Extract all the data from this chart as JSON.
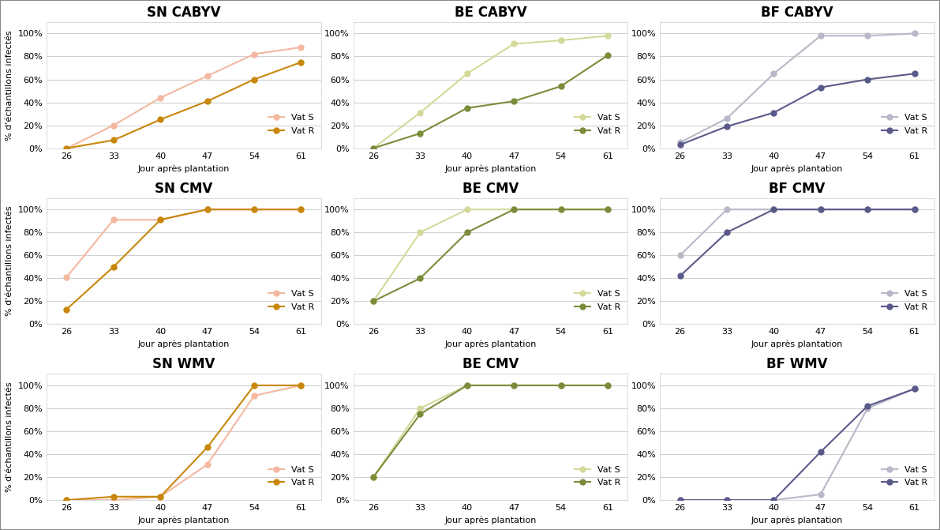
{
  "x": [
    26,
    33,
    40,
    47,
    54,
    61
  ],
  "plots": [
    {
      "title": "SN CABYV",
      "vat_s": [
        0,
        0.2,
        0.44,
        0.63,
        0.82,
        0.88
      ],
      "vat_r": [
        0,
        0.07,
        0.25,
        0.41,
        0.6,
        0.75
      ],
      "color_s": "#f4b8a0",
      "color_r": "#c8860a"
    },
    {
      "title": "BE CABYV",
      "vat_s": [
        0,
        0.31,
        0.65,
        0.91,
        0.94,
        0.98
      ],
      "vat_r": [
        0,
        0.13,
        0.35,
        0.41,
        0.54,
        0.81
      ],
      "color_s": "#d4d99a",
      "color_r": "#7a8c3a"
    },
    {
      "title": "BF CABYV",
      "vat_s": [
        0.05,
        0.26,
        0.65,
        0.98,
        0.98,
        1.0
      ],
      "vat_r": [
        0.03,
        0.19,
        0.31,
        0.53,
        0.6,
        0.65
      ],
      "color_s": "#b8b8c8",
      "color_r": "#5a5a8a"
    },
    {
      "title": "SN CMV",
      "vat_s": [
        0.41,
        0.91,
        0.91,
        1.0,
        1.0,
        1.0
      ],
      "vat_r": [
        0.13,
        0.5,
        0.91,
        1.0,
        1.0,
        1.0
      ],
      "color_s": "#f4b8a0",
      "color_r": "#c8860a"
    },
    {
      "title": "BE CMV",
      "vat_s": [
        0.2,
        0.8,
        1.0,
        1.0,
        1.0,
        1.0
      ],
      "vat_r": [
        0.2,
        0.4,
        0.8,
        1.0,
        1.0,
        1.0
      ],
      "color_s": "#d4d99a",
      "color_r": "#7a8c3a"
    },
    {
      "title": "BF CMV",
      "vat_s": [
        0.6,
        1.0,
        1.0,
        1.0,
        1.0,
        1.0
      ],
      "vat_r": [
        0.42,
        0.8,
        1.0,
        1.0,
        1.0,
        1.0
      ],
      "color_s": "#b8b8c8",
      "color_r": "#5a5a8a"
    },
    {
      "title": "SN WMV",
      "vat_s": [
        0,
        0,
        0.03,
        0.31,
        0.91,
        1.0
      ],
      "vat_r": [
        0,
        0.03,
        0.03,
        0.46,
        1.0,
        1.0
      ],
      "color_s": "#f4b8a0",
      "color_r": "#c8860a"
    },
    {
      "title": "BE CMV",
      "vat_s": [
        0.2,
        0.8,
        1.0,
        1.0,
        1.0,
        1.0
      ],
      "vat_r": [
        0.2,
        0.75,
        1.0,
        1.0,
        1.0,
        1.0
      ],
      "color_s": "#d4d99a",
      "color_r": "#7a8c3a"
    },
    {
      "title": "BF WMV",
      "vat_s": [
        0,
        0,
        0,
        0.05,
        0.8,
        0.97
      ],
      "vat_r": [
        0,
        0,
        0,
        0.42,
        0.82,
        0.97
      ],
      "color_s": "#b8b8c8",
      "color_r": "#5a5a8a"
    }
  ],
  "xlabel": "Jour après plantation",
  "ylabel": "% d'échantillons infectés",
  "legend_s": "Vat S",
  "legend_r": "Vat R",
  "background_color": "#ffffff",
  "grid_color": "#d0d0d0",
  "title_fontsize": 12,
  "label_fontsize": 8,
  "tick_fontsize": 8,
  "legend_fontsize": 8
}
